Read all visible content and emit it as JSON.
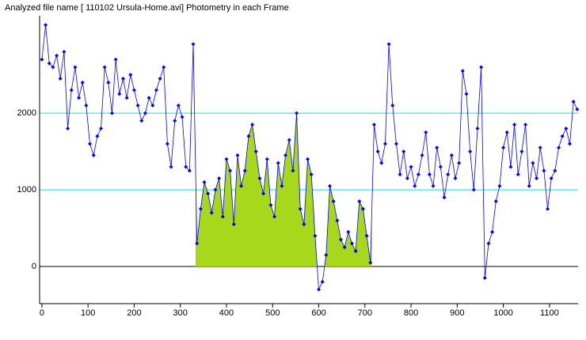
{
  "chart_data": {
    "type": "line",
    "title": "Analyzed file name [ 110102 Ursula-Home.avi]   Photometry in each Frame",
    "x": [
      0,
      8,
      16,
      24,
      32,
      40,
      48,
      56,
      64,
      72,
      80,
      88,
      96,
      104,
      112,
      120,
      128,
      136,
      144,
      152,
      160,
      168,
      176,
      184,
      192,
      200,
      208,
      216,
      224,
      232,
      240,
      248,
      256,
      264,
      272,
      280,
      288,
      296,
      304,
      312,
      320,
      328,
      336,
      344,
      352,
      360,
      368,
      376,
      384,
      392,
      400,
      408,
      416,
      424,
      432,
      440,
      448,
      456,
      464,
      472,
      480,
      488,
      496,
      504,
      512,
      520,
      528,
      536,
      544,
      552,
      560,
      568,
      576,
      584,
      592,
      600,
      608,
      616,
      624,
      632,
      640,
      648,
      656,
      664,
      672,
      680,
      688,
      696,
      704,
      712,
      720,
      728,
      736,
      744,
      752,
      760,
      768,
      776,
      784,
      792,
      800,
      808,
      816,
      824,
      832,
      840,
      848,
      856,
      864,
      872,
      880,
      888,
      896,
      904,
      912,
      920,
      928,
      936,
      944,
      952,
      960,
      968,
      976,
      984,
      992,
      1000,
      1008,
      1016,
      1024,
      1032,
      1040,
      1048,
      1056,
      1064,
      1072,
      1080,
      1088,
      1096,
      1104,
      1112,
      1120,
      1128,
      1136,
      1144,
      1152,
      1160
    ],
    "series": [
      {
        "color": "#0000ff",
        "values": [
          2700,
          3150,
          2650,
          2600,
          2750,
          2450,
          2800,
          1800,
          2300,
          2600,
          2200,
          2400,
          2100,
          1600,
          1450,
          1700,
          1800,
          2600,
          2400,
          2000,
          2700,
          2250,
          2450,
          2200,
          2500,
          2300,
          2100,
          1900,
          2000,
          2200,
          2100,
          2300,
          2450,
          2600,
          1600,
          1300,
          1900,
          2100,
          1950,
          1300,
          1250,
          2900,
          300,
          750,
          1100,
          950,
          700,
          1000,
          1150,
          650,
          1400,
          1250,
          550,
          1450,
          1050,
          1250,
          1700,
          1850,
          1500,
          1150,
          950,
          1400,
          800,
          650,
          1350,
          1050,
          1450,
          1650,
          1250,
          2000,
          750,
          550,
          1400,
          1200,
          400,
          -300,
          -200,
          150,
          1050,
          850,
          600,
          350,
          250,
          450,
          300,
          200,
          850,
          750,
          400,
          50,
          1850,
          1500,
          1350,
          1600,
          2900,
          2100,
          1600,
          1200,
          1500,
          1150,
          1300,
          1050,
          1200,
          1450,
          1750,
          1200,
          1050,
          1550,
          1300,
          900,
          1200,
          1450,
          1150,
          1350,
          2550,
          2250,
          1500,
          1000,
          1800,
          2600,
          -150,
          300,
          450,
          850,
          1050,
          1550,
          1750,
          1300,
          1850,
          1200,
          1500,
          1850,
          1050,
          1350,
          1150,
          1550,
          1250,
          750,
          1150,
          1250,
          1550,
          1700,
          1800,
          1600,
          2150,
          2050
        ]
      }
    ],
    "fill_range": [
      333,
      715
    ],
    "fill_color": "#a8d81c",
    "xlim": [
      -5,
      1162
    ],
    "ylim": [
      -485,
      3270
    ],
    "xticks": [
      0,
      100,
      200,
      300,
      400,
      500,
      600,
      700,
      800,
      900,
      1000,
      1100
    ],
    "yticks": [
      0,
      1000,
      2000
    ],
    "grid": true,
    "grid_color": "#00e5e5"
  }
}
